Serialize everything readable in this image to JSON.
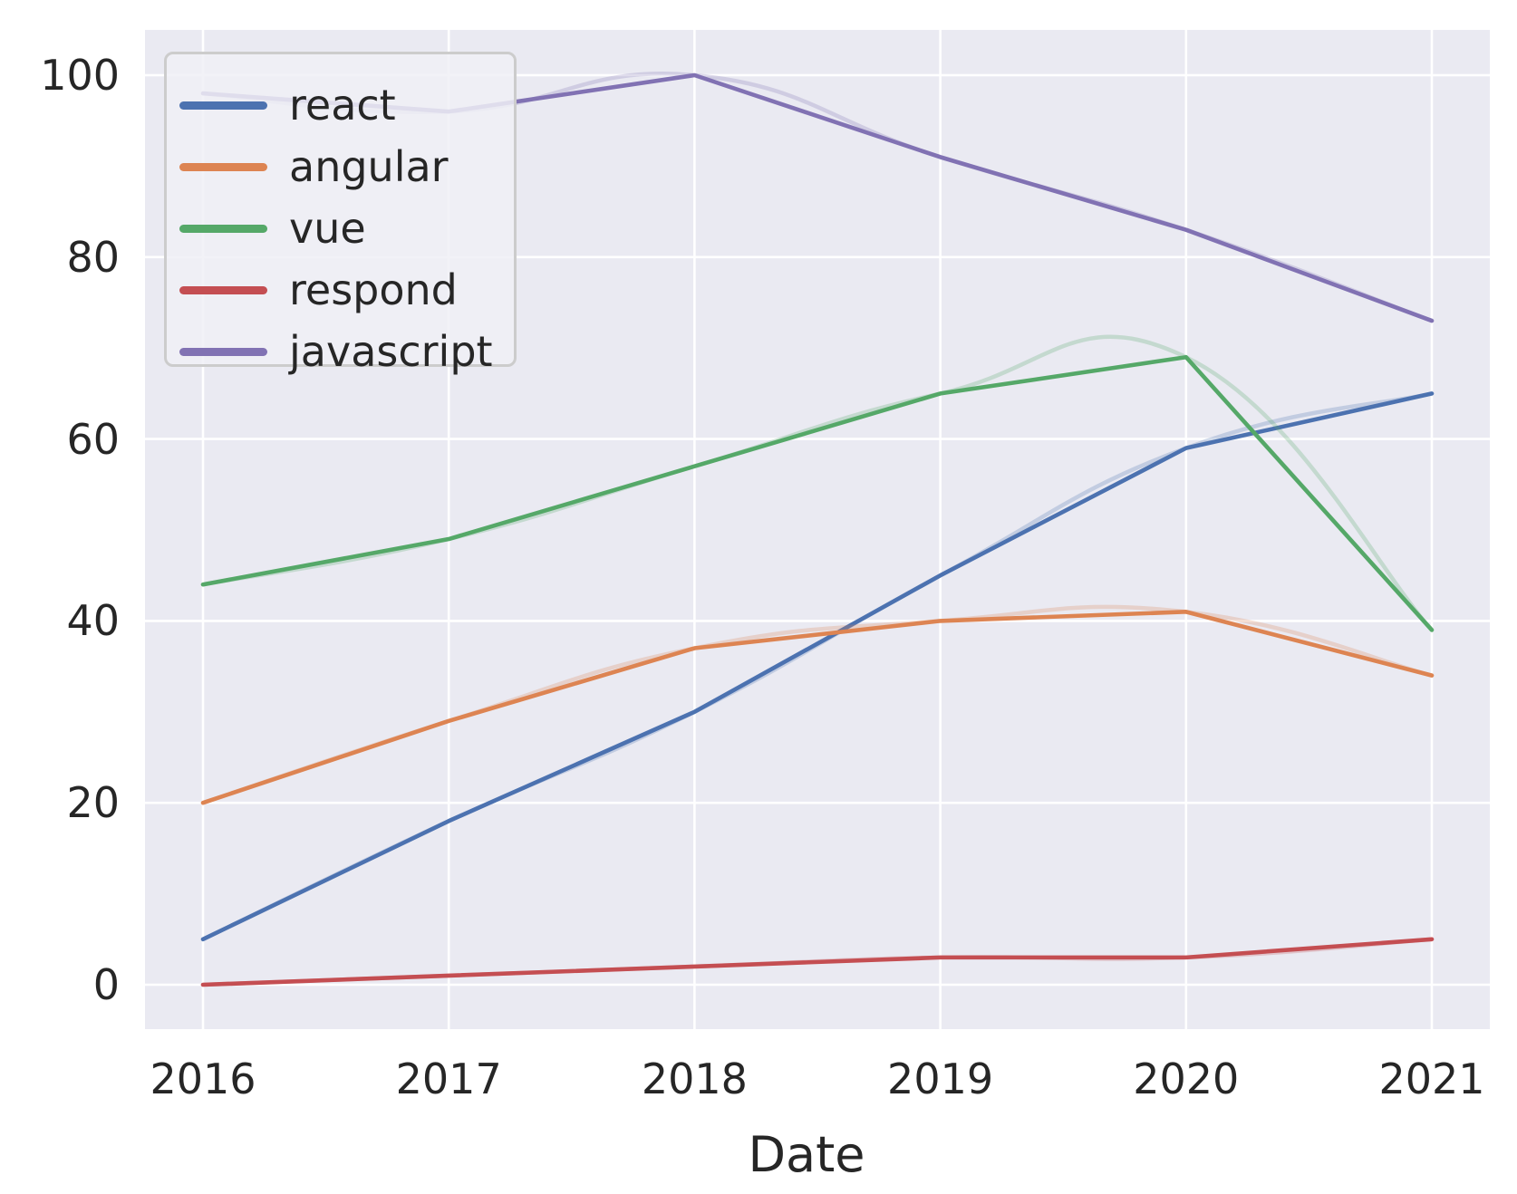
{
  "figure": {
    "plot_bg": "#eaeaf2",
    "grid_color": "#ffffff",
    "text_color": "#262626"
  },
  "chart_data": {
    "type": "line",
    "title": "",
    "xlabel": "Date",
    "ylabel": "",
    "categories": [
      "2016",
      "2017",
      "2018",
      "2019",
      "2020",
      "2021"
    ],
    "yticks": [
      0,
      20,
      40,
      60,
      80,
      100
    ],
    "ylim": [
      -4.9,
      105
    ],
    "xlim": [
      2015.76,
      2021.24
    ],
    "grid": true,
    "legend_position": "upper left",
    "smoothed_shadow": true,
    "series": [
      {
        "name": "react",
        "color": "#4c72b0",
        "values": [
          5,
          18,
          30,
          45,
          59,
          65
        ]
      },
      {
        "name": "angular",
        "color": "#dd8452",
        "values": [
          20,
          29,
          37,
          40,
          41,
          34
        ]
      },
      {
        "name": "vue",
        "color": "#55a868",
        "values": [
          44,
          49,
          57,
          65,
          69,
          39
        ]
      },
      {
        "name": "respond",
        "color": "#c44e52",
        "values": [
          0,
          1,
          2,
          3,
          3,
          5
        ]
      },
      {
        "name": "javascript",
        "color": "#8172b3",
        "values": [
          98,
          96,
          100,
          91,
          83,
          73
        ]
      }
    ]
  }
}
